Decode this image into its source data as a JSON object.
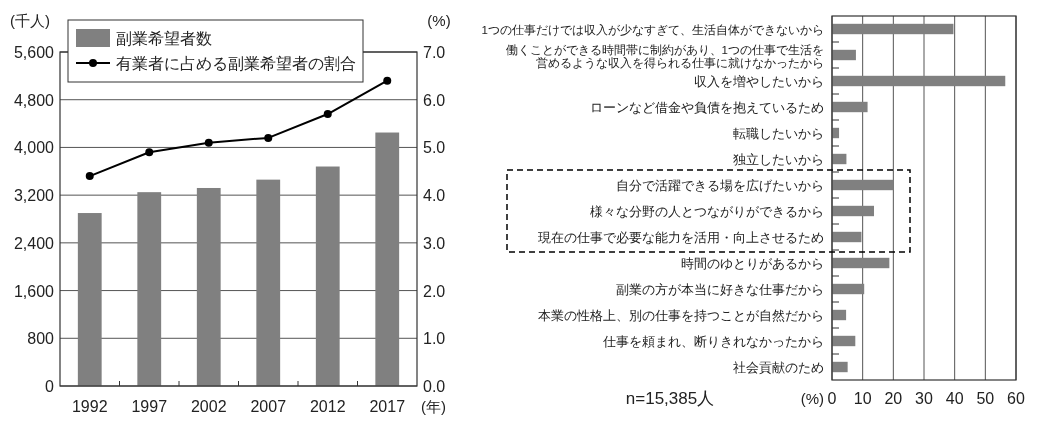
{
  "chart_data": [
    {
      "type": "bar",
      "categories": [
        "1992",
        "1997",
        "2002",
        "2007",
        "2012",
        "2017"
      ],
      "xlabel": "(年)",
      "ylabel": "(千人)",
      "y2label": "(%)",
      "series": [
        {
          "name": "副業希望者数",
          "type": "bar",
          "color": "#808080",
          "values": [
            2900,
            3250,
            3320,
            3460,
            3680,
            4250
          ]
        },
        {
          "name": "有業者に占める副業希望者の割合",
          "type": "line",
          "axis": "y2",
          "color": "#000000",
          "marker": "circle",
          "values": [
            4.4,
            4.9,
            5.1,
            5.2,
            5.7,
            6.4
          ]
        }
      ],
      "ylim": [
        0,
        5600
      ],
      "yticks": [
        {
          "value": 0,
          "label": "0"
        },
        {
          "value": 800,
          "label": "800"
        },
        {
          "value": 1600,
          "label": "1,600"
        },
        {
          "value": 2400,
          "label": "2,400"
        },
        {
          "value": 3200,
          "label": "3,200"
        },
        {
          "value": 4000,
          "label": "4,000"
        },
        {
          "value": 4800,
          "label": "4,800"
        },
        {
          "value": 5600,
          "label": "5,600"
        }
      ],
      "y2lim": [
        0,
        7
      ],
      "y2ticks": [
        {
          "value": 0,
          "label": "0.0"
        },
        {
          "value": 1,
          "label": "1.0"
        },
        {
          "value": 2,
          "label": "2.0"
        },
        {
          "value": 3,
          "label": "3.0"
        },
        {
          "value": 4,
          "label": "4.0"
        },
        {
          "value": 5,
          "label": "5.0"
        },
        {
          "value": 6,
          "label": "6.0"
        },
        {
          "value": 7,
          "label": "7.0"
        }
      ],
      "grid": "y",
      "legend": "top left"
    },
    {
      "type": "bar",
      "orientation": "horizontal",
      "categories": [
        "1つの仕事だけでは収入が少なすぎて、生活自体ができないから",
        "働くことができる時間帯に制約があり、1つの仕事で生活を営めるような収入を得られる仕事に就けなかったから",
        "収入を増やしたいから",
        "ローンなど借金や負債を抱えているため",
        "転職したいから",
        "独立したいから",
        "自分で活躍できる場を広げたいから",
        "様々な分野の人とつながりができるから",
        "現在の仕事で必要な能力を活用・向上させるため",
        "時間のゆとりがあるから",
        "副業の方が本当に好きな仕事だから",
        "本業の性格上、別の仕事を持つことが自然だから",
        "仕事を頼まれ、断りきれなかったから",
        "社会貢献のため"
      ],
      "values": [
        39.6,
        7.8,
        56.5,
        11.6,
        2.3,
        4.7,
        20.1,
        13.7,
        9.6,
        18.7,
        10.5,
        4.6,
        7.6,
        5.1
      ],
      "color": "#808080",
      "xlim": [
        0,
        60
      ],
      "xticks": [
        0,
        10,
        20,
        30,
        40,
        50,
        60
      ],
      "xlabel": "(%)",
      "grid": "x",
      "annotations": [
        "n=15,385人"
      ]
    }
  ]
}
